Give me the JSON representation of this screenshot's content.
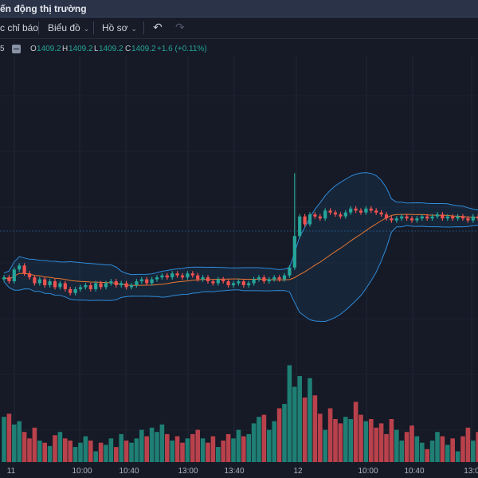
{
  "window": {
    "title": "ến động thị trường"
  },
  "toolbar": {
    "indicators_label": "c chỉ báo",
    "chart_label": "Biểu đồ",
    "profile_label": "Hồ sơ"
  },
  "legend": {
    "interval_fragment": "5",
    "open_label": "O",
    "open": "1409.2",
    "high_label": "H",
    "high": "1409.2",
    "low_label": "L",
    "low": "1409.2",
    "close_label": "C",
    "close": "1409.2",
    "change": "+1.6 (+0.11%)"
  },
  "colors": {
    "up": "#26a69a",
    "down": "#ef5350",
    "bollinger": "#2f8bd8",
    "moving_average": "#e8782f",
    "background": "#151a26"
  },
  "chart_data": {
    "type": "candlestick",
    "x_tick_labels": [
      "11",
      "10:00",
      "10:40",
      "13:00",
      "13:40",
      "12",
      "10:00",
      "10:40",
      "13:0"
    ],
    "indicators": [
      "bollinger-bands",
      "moving-average",
      "volume"
    ],
    "grid": true,
    "closes": [
      1374,
      1372,
      1378,
      1380,
      1376,
      1374,
      1371,
      1373,
      1370,
      1372,
      1369,
      1371,
      1368,
      1366,
      1368,
      1369,
      1370,
      1368,
      1371,
      1369,
      1371,
      1372,
      1370,
      1371,
      1369,
      1370,
      1372,
      1373,
      1371,
      1373,
      1374,
      1375,
      1374,
      1376,
      1375,
      1374,
      1376,
      1375,
      1373,
      1374,
      1372,
      1371,
      1373,
      1372,
      1370,
      1371,
      1372,
      1370,
      1371,
      1373,
      1374,
      1372,
      1373,
      1374,
      1373,
      1375,
      1379,
      1395,
      1405,
      1401,
      1406,
      1405,
      1404,
      1408,
      1407,
      1406,
      1405,
      1407,
      1409,
      1408,
      1407,
      1409,
      1408,
      1407,
      1406,
      1404,
      1403,
      1404,
      1405,
      1404,
      1403,
      1404,
      1405,
      1404,
      1405,
      1406,
      1404,
      1405,
      1404,
      1405,
      1404,
      1403,
      1405,
      1404,
      1405
    ],
    "volumes": [
      42,
      45,
      35,
      38,
      28,
      22,
      32,
      20,
      18,
      15,
      25,
      28,
      22,
      20,
      14,
      18,
      24,
      20,
      10,
      18,
      16,
      22,
      14,
      26,
      20,
      18,
      22,
      30,
      24,
      32,
      28,
      35,
      26,
      20,
      24,
      18,
      22,
      26,
      30,
      22,
      18,
      24,
      14,
      20,
      26,
      22,
      30,
      24,
      26,
      36,
      42,
      44,
      30,
      38,
      50,
      54,
      90,
      70,
      80,
      60,
      78,
      62,
      45,
      30,
      50,
      40,
      36,
      42,
      40,
      56,
      44,
      38,
      40,
      32,
      36,
      26,
      40,
      30,
      20,
      28,
      34,
      24,
      18,
      12,
      20,
      28,
      24,
      16,
      22,
      10,
      24,
      32,
      20,
      28,
      24
    ]
  }
}
